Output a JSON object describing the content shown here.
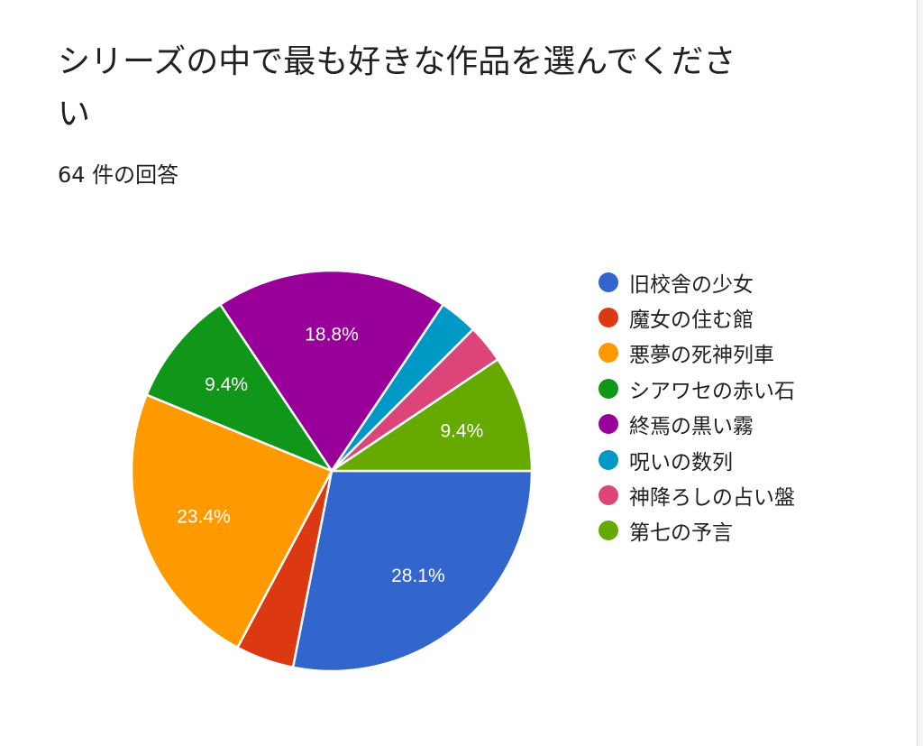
{
  "form": {
    "question_title": "シリーズの中で最も好きな作品を選んでください",
    "response_count": "64 件の回答"
  },
  "chart_data": {
    "type": "pie",
    "title": "シリーズの中で最も好きな作品を選んでください",
    "total_responses": 64,
    "slices": [
      {
        "label": "旧校舎の少女",
        "value": 28.1,
        "data_label": "28.1%",
        "color": "#3366cc"
      },
      {
        "label": "魔女の住む館",
        "value": 4.7,
        "data_label": "",
        "color": "#dc3912"
      },
      {
        "label": "悪夢の死神列車",
        "value": 23.4,
        "data_label": "23.4%",
        "color": "#ff9900"
      },
      {
        "label": "シアワセの赤い石",
        "value": 9.4,
        "data_label": "9.4%",
        "color": "#109618"
      },
      {
        "label": "終焉の黒い霧",
        "value": 18.8,
        "data_label": "18.8%",
        "color": "#990099"
      },
      {
        "label": "呪いの数列",
        "value": 3.1,
        "data_label": "",
        "color": "#0099c6"
      },
      {
        "label": "神降ろしの占い盤",
        "value": 3.1,
        "data_label": "",
        "color": "#dd4477"
      },
      {
        "label": "第七の予言",
        "value": 9.4,
        "data_label": "9.4%",
        "color": "#66aa00"
      }
    ],
    "start_angle": "3 o'clock",
    "direction": "clockwise",
    "legend_position": "right"
  }
}
